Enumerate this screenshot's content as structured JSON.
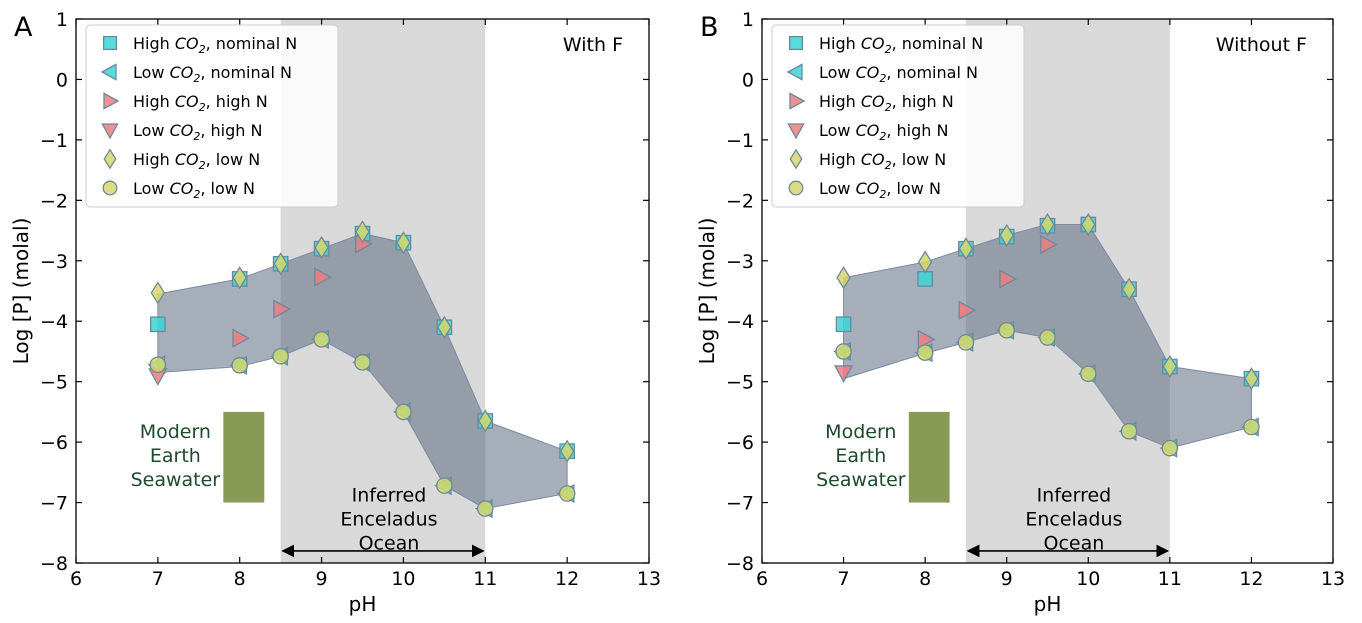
{
  "chart_data": [
    {
      "type": "scatter",
      "panel_letter": "A",
      "corner_label": "With F",
      "xlabel": "pH",
      "ylabel": "Log [P] (molal)",
      "xlim": [
        6,
        13
      ],
      "ylim": [
        -8,
        1
      ],
      "xticks": [
        "6",
        "7",
        "8",
        "9",
        "10",
        "11",
        "12",
        "13"
      ],
      "yticks": [
        "−8",
        "−7",
        "−6",
        "−5",
        "−4",
        "−3",
        "−2",
        "−1",
        "0",
        "1"
      ],
      "grid": false,
      "legend_position": "top-left",
      "shaded_region": {
        "x": [
          8.5,
          11
        ],
        "label_lines": [
          "Inferred",
          "Enceladus",
          "Ocean"
        ]
      },
      "reference_box": {
        "x": [
          7.8,
          8.3
        ],
        "y": [
          -7,
          -5.5
        ],
        "label_lines": [
          "Modern",
          "Earth",
          "Seawater"
        ],
        "color": "#879a56"
      },
      "envelope": {
        "upper": [
          [
            7,
            -3.55
          ],
          [
            8,
            -3.3
          ],
          [
            8.5,
            -3.05
          ],
          [
            9,
            -2.8
          ],
          [
            9.5,
            -2.55
          ],
          [
            10,
            -2.7
          ],
          [
            10.5,
            -4.1
          ],
          [
            11,
            -5.65
          ],
          [
            12,
            -6.15
          ]
        ],
        "lower": [
          [
            7,
            -4.85
          ],
          [
            8,
            -4.75
          ],
          [
            8.5,
            -4.58
          ],
          [
            9,
            -4.3
          ],
          [
            9.5,
            -4.68
          ],
          [
            10,
            -5.5
          ],
          [
            10.5,
            -6.72
          ],
          [
            11,
            -7.1
          ],
          [
            12,
            -6.85
          ]
        ]
      },
      "series": [
        {
          "name": "High CO₂, nominal N",
          "label_main": "High ",
          "label_sym": "CO",
          "label_sub": "2",
          "label_rest": ", nominal N",
          "marker": "square",
          "color": "#3ad6d6",
          "x": [
            7,
            8,
            8.5,
            9,
            9.5,
            10,
            10.5,
            11,
            12
          ],
          "y": [
            -4.05,
            -3.3,
            -3.05,
            -2.8,
            -2.55,
            -2.7,
            -4.1,
            -5.65,
            -6.15
          ]
        },
        {
          "name": "Low CO₂, nominal N",
          "label_main": "Low ",
          "label_sym": "CO",
          "label_sub": "2",
          "label_rest": ", nominal N",
          "marker": "triangle-left",
          "color": "#3ad6d6",
          "x": [
            7,
            8,
            8.5,
            9,
            9.5,
            10,
            10.5,
            11,
            12
          ],
          "y": [
            -4.72,
            -4.73,
            -4.58,
            -4.3,
            -4.68,
            -5.5,
            -6.72,
            -7.1,
            -6.85
          ]
        },
        {
          "name": "High CO₂, high N",
          "label_main": "High ",
          "label_sym": "CO",
          "label_sub": "2",
          "label_rest": ", high N",
          "marker": "triangle-right",
          "color": "#f07b80",
          "x": [
            8,
            8.5,
            9,
            9.5
          ],
          "y": [
            -4.28,
            -3.8,
            -3.27,
            -2.72
          ]
        },
        {
          "name": "Low CO₂, high N",
          "label_main": "Low ",
          "label_sym": "CO",
          "label_sub": "2",
          "label_rest": ", high N",
          "marker": "triangle-down",
          "color": "#f07b80",
          "x": [
            7
          ],
          "y": [
            -4.9
          ]
        },
        {
          "name": "High CO₂, low N",
          "label_main": "High ",
          "label_sym": "CO",
          "label_sub": "2",
          "label_rest": ", low N",
          "marker": "diamond",
          "color": "#d6d66a",
          "x": [
            7,
            8,
            8.5,
            9,
            9.5,
            10,
            10.5,
            11,
            12
          ],
          "y": [
            -3.53,
            -3.28,
            -3.05,
            -2.78,
            -2.52,
            -2.7,
            -4.1,
            -5.65,
            -6.15
          ]
        },
        {
          "name": "Low CO₂, low N",
          "label_main": "Low ",
          "label_sym": "CO",
          "label_sub": "2",
          "label_rest": ", low N",
          "marker": "circle",
          "color": "#d6d66a",
          "x": [
            7,
            8,
            8.5,
            9,
            9.5,
            10,
            10.5,
            11,
            12
          ],
          "y": [
            -4.72,
            -4.73,
            -4.58,
            -4.3,
            -4.68,
            -5.5,
            -6.72,
            -7.1,
            -6.85
          ]
        }
      ]
    },
    {
      "type": "scatter",
      "panel_letter": "B",
      "corner_label": "Without F",
      "xlabel": "pH",
      "ylabel": "Log [P] (molal)",
      "xlim": [
        6,
        13
      ],
      "ylim": [
        -8,
        1
      ],
      "xticks": [
        "6",
        "7",
        "8",
        "9",
        "10",
        "11",
        "12",
        "13"
      ],
      "yticks": [
        "−8",
        "−7",
        "−6",
        "−5",
        "−4",
        "−3",
        "−2",
        "−1",
        "0",
        "1"
      ],
      "grid": false,
      "legend_position": "top-left",
      "shaded_region": {
        "x": [
          8.5,
          11
        ],
        "label_lines": [
          "Inferred",
          "Enceladus",
          "Ocean"
        ]
      },
      "reference_box": {
        "x": [
          7.8,
          8.3
        ],
        "y": [
          -7,
          -5.5
        ],
        "label_lines": [
          "Modern",
          "Earth",
          "Seawater"
        ],
        "color": "#879a56"
      },
      "envelope": {
        "upper": [
          [
            7,
            -3.28
          ],
          [
            8,
            -3.02
          ],
          [
            8.5,
            -2.8
          ],
          [
            9,
            -2.58
          ],
          [
            9.5,
            -2.4
          ],
          [
            10,
            -2.4
          ],
          [
            10.5,
            -3.47
          ],
          [
            11,
            -4.75
          ],
          [
            12,
            -4.95
          ]
        ],
        "lower": [
          [
            7,
            -4.95
          ],
          [
            8,
            -4.53
          ],
          [
            8.5,
            -4.35
          ],
          [
            9,
            -4.15
          ],
          [
            9.5,
            -4.27
          ],
          [
            10,
            -4.87
          ],
          [
            10.5,
            -5.82
          ],
          [
            11,
            -6.1
          ],
          [
            12,
            -5.75
          ]
        ]
      },
      "series": [
        {
          "name": "High CO₂, nominal N",
          "label_main": "High ",
          "label_sym": "CO",
          "label_sub": "2",
          "label_rest": ", nominal N",
          "marker": "square",
          "color": "#3ad6d6",
          "x": [
            7,
            8,
            8.5,
            9,
            9.5,
            10,
            10.5,
            11,
            12
          ],
          "y": [
            -4.05,
            -3.3,
            -2.8,
            -2.6,
            -2.42,
            -2.4,
            -3.47,
            -4.75,
            -4.95
          ]
        },
        {
          "name": "Low CO₂, nominal N",
          "label_main": "Low ",
          "label_sym": "CO",
          "label_sub": "2",
          "label_rest": ", nominal N",
          "marker": "triangle-left",
          "color": "#3ad6d6",
          "x": [
            7,
            8,
            8.5,
            9,
            9.5,
            10,
            10.5,
            11,
            12
          ],
          "y": [
            -4.5,
            -4.52,
            -4.35,
            -4.15,
            -4.27,
            -4.87,
            -5.82,
            -6.1,
            -5.75
          ]
        },
        {
          "name": "High CO₂, high N",
          "label_main": "High ",
          "label_sym": "CO",
          "label_sub": "2",
          "label_rest": ", high N",
          "marker": "triangle-right",
          "color": "#f07b80",
          "x": [
            8,
            8.5,
            9,
            9.5
          ],
          "y": [
            -4.3,
            -3.82,
            -3.3,
            -2.73
          ]
        },
        {
          "name": "Low CO₂, high N",
          "label_main": "Low ",
          "label_sym": "CO",
          "label_sub": "2",
          "label_rest": ", high N",
          "marker": "triangle-down",
          "color": "#f07b80",
          "x": [
            7
          ],
          "y": [
            -4.85
          ]
        },
        {
          "name": "High CO₂, low N",
          "label_main": "High ",
          "label_sym": "CO",
          "label_sub": "2",
          "label_rest": ", low N",
          "marker": "diamond",
          "color": "#d6d66a",
          "x": [
            7,
            8,
            8.5,
            9,
            9.5,
            10,
            10.5,
            11,
            12
          ],
          "y": [
            -3.28,
            -3.02,
            -2.8,
            -2.58,
            -2.4,
            -2.4,
            -3.47,
            -4.75,
            -4.95
          ]
        },
        {
          "name": "Low CO₂, low N",
          "label_main": "Low ",
          "label_sym": "CO",
          "label_sub": "2",
          "label_rest": ", low N",
          "marker": "circle",
          "color": "#d6d66a",
          "x": [
            7,
            8,
            8.5,
            9,
            9.5,
            10,
            10.5,
            11,
            12
          ],
          "y": [
            -4.5,
            -4.52,
            -4.35,
            -4.15,
            -4.27,
            -4.87,
            -5.82,
            -6.1,
            -5.75
          ]
        }
      ]
    }
  ]
}
